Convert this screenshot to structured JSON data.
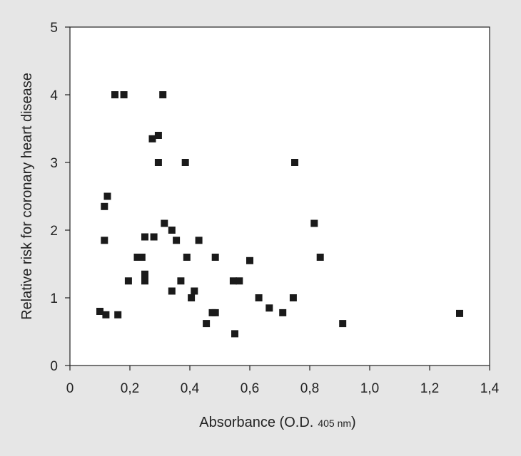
{
  "chart_data": {
    "type": "scatter",
    "xlabel": "Absorbance (O.D.",
    "xlabel_sub": "405 nm",
    "xlabel_close": ")",
    "ylabel": "Relative risk for coronary heart disease",
    "xlim": [
      0,
      1.4
    ],
    "ylim": [
      0,
      5
    ],
    "xticks": [
      0,
      0.2,
      0.4,
      0.6,
      0.8,
      1.0,
      1.2,
      1.4
    ],
    "xtick_labels": [
      "0",
      "0,2",
      "0,4",
      "0,6",
      "0,8",
      "1,0",
      "1,2",
      "1,4"
    ],
    "yticks": [
      0,
      1,
      2,
      3,
      4,
      5
    ],
    "ytick_labels": [
      "0",
      "1",
      "2",
      "3",
      "4",
      "5"
    ],
    "grid": false,
    "marker": "square",
    "marker_color": "#1a1a1a",
    "plot_background": "#ffffff",
    "page_background": "#e6e6e6",
    "points": [
      {
        "x": 0.15,
        "y": 4.0
      },
      {
        "x": 0.18,
        "y": 4.0
      },
      {
        "x": 0.31,
        "y": 4.0
      },
      {
        "x": 0.275,
        "y": 3.35
      },
      {
        "x": 0.295,
        "y": 3.4
      },
      {
        "x": 0.295,
        "y": 3.0
      },
      {
        "x": 0.385,
        "y": 3.0
      },
      {
        "x": 0.75,
        "y": 3.0
      },
      {
        "x": 0.125,
        "y": 2.5
      },
      {
        "x": 0.115,
        "y": 2.35
      },
      {
        "x": 0.315,
        "y": 2.1
      },
      {
        "x": 0.815,
        "y": 2.1
      },
      {
        "x": 0.34,
        "y": 2.0
      },
      {
        "x": 0.25,
        "y": 1.9
      },
      {
        "x": 0.28,
        "y": 1.9
      },
      {
        "x": 0.115,
        "y": 1.85
      },
      {
        "x": 0.355,
        "y": 1.85
      },
      {
        "x": 0.43,
        "y": 1.85
      },
      {
        "x": 0.225,
        "y": 1.6
      },
      {
        "x": 0.24,
        "y": 1.6
      },
      {
        "x": 0.39,
        "y": 1.6
      },
      {
        "x": 0.485,
        "y": 1.6
      },
      {
        "x": 0.835,
        "y": 1.6
      },
      {
        "x": 0.6,
        "y": 1.55
      },
      {
        "x": 0.25,
        "y": 1.35
      },
      {
        "x": 0.195,
        "y": 1.25
      },
      {
        "x": 0.25,
        "y": 1.25
      },
      {
        "x": 0.37,
        "y": 1.25
      },
      {
        "x": 0.545,
        "y": 1.25
      },
      {
        "x": 0.565,
        "y": 1.25
      },
      {
        "x": 0.34,
        "y": 1.1
      },
      {
        "x": 0.415,
        "y": 1.1
      },
      {
        "x": 0.405,
        "y": 1.0
      },
      {
        "x": 0.63,
        "y": 1.0
      },
      {
        "x": 0.745,
        "y": 1.0
      },
      {
        "x": 0.665,
        "y": 0.85
      },
      {
        "x": 0.1,
        "y": 0.8
      },
      {
        "x": 0.475,
        "y": 0.78
      },
      {
        "x": 0.485,
        "y": 0.78
      },
      {
        "x": 0.71,
        "y": 0.78
      },
      {
        "x": 1.3,
        "y": 0.77
      },
      {
        "x": 0.12,
        "y": 0.75
      },
      {
        "x": 0.16,
        "y": 0.75
      },
      {
        "x": 0.455,
        "y": 0.62
      },
      {
        "x": 0.91,
        "y": 0.62
      },
      {
        "x": 0.55,
        "y": 0.47
      }
    ]
  }
}
